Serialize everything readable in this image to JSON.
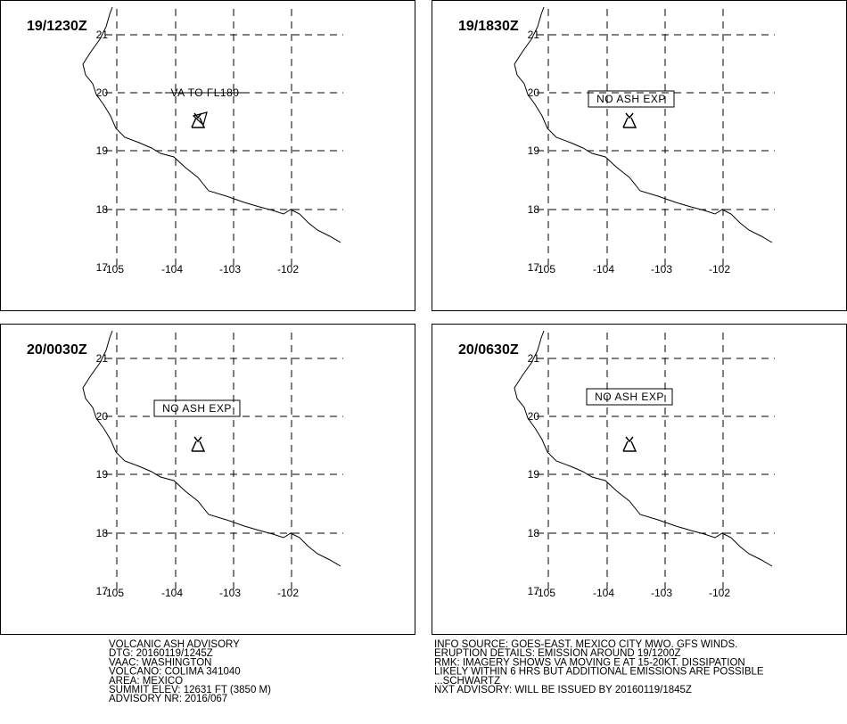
{
  "map": {
    "lat_labels": [
      "21",
      "20",
      "19",
      "18",
      "17"
    ],
    "lon_labels": [
      "-105",
      "-104",
      "-103",
      "-102"
    ]
  },
  "panels": [
    {
      "time_label": "19/1230Z",
      "annotation": "VA TO FL180",
      "annotation_boxed": false
    },
    {
      "time_label": "19/1830Z",
      "annotation": "NO ASH EXP",
      "annotation_boxed": true
    },
    {
      "time_label": "20/0030Z",
      "annotation": "NO ASH EXP",
      "annotation_boxed": true
    },
    {
      "time_label": "20/0630Z",
      "annotation": "NO ASH EXP",
      "annotation_boxed": true
    }
  ],
  "advisory_left": [
    "VOLCANIC ASH ADVISORY",
    "DTG: 20160119/1245Z",
    "VAAC: WASHINGTON",
    "VOLCANO: COLIMA 341040",
    "AREA: MEXICO",
    "SUMMIT ELEV: 12631 FT (3850 M)",
    "ADVISORY NR: 2016/067"
  ],
  "advisory_right": [
    "INFO SOURCE: GOES-EAST. MEXICO CITY MWO. GFS WINDS.",
    "ERUPTION DETAILS: EMISSION AROUND 19/1200Z",
    "RMK: IMAGERY SHOWS VA MOVING E AT 15-20KT. DISSIPATION",
    "LIKELY WITHIN 6 HRS BUT ADDITIONAL EMISSIONS ARE POSSIBLE",
    "...SCHWARTZ",
    "NXT ADVISORY: WILL BE ISSUED BY 20160119/1845Z"
  ]
}
